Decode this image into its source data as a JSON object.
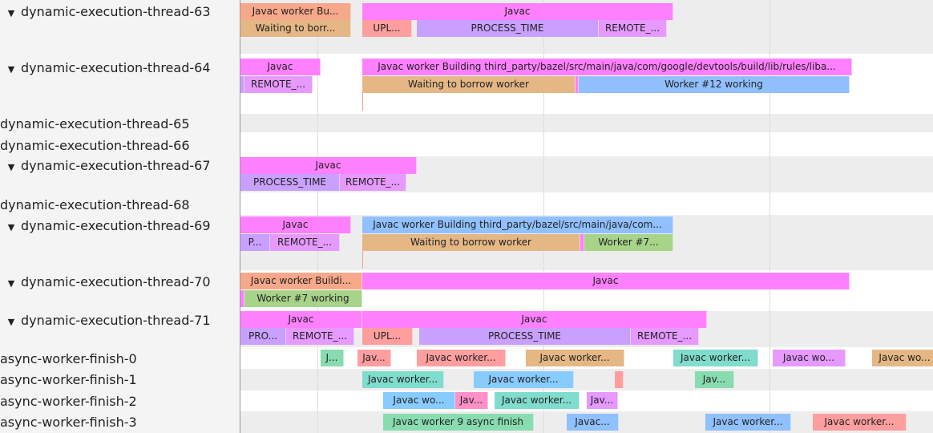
{
  "colors": {
    "javac": "#ff80ff",
    "salmon": "#f8a88a",
    "tan": "#e4b785",
    "red": "#ff9e9e",
    "lavender": "#c9a0ff",
    "violet": "#e699ff",
    "blue": "#90c0ff",
    "sky": "#88ccff",
    "lime": "#a8d48a",
    "green": "#88dcb0",
    "teal": "#80dccc",
    "pink": "#ff90c8"
  },
  "tracks": [
    {
      "name": "dynamic-execution-thread-63",
      "expanded": true,
      "slices": [
        {
          "text": "Javac worker Bu...",
          "color": "#f8a88a"
        },
        {
          "text": "Javac",
          "color": "#ff80ff"
        },
        {
          "text": "Waiting to borr...",
          "color": "#e4b785"
        },
        {
          "text": "UPL...",
          "color": "#ff9e9e"
        },
        {
          "text": "PROCESS_TIME",
          "color": "#c9a0ff"
        },
        {
          "text": "REMOTE_...",
          "color": "#e699ff"
        }
      ]
    },
    {
      "name": "dynamic-execution-thread-64",
      "expanded": true,
      "slices": [
        {
          "text": "Javac",
          "color": "#ff80ff"
        },
        {
          "text": "Javac worker Building third_party/bazel/src/main/java/com/google/devtools/build/lib/rules/liba...",
          "color": "#ff80ff"
        },
        {
          "text": "",
          "color": "#c9a0ff"
        },
        {
          "text": "REMOTE_...",
          "color": "#e699ff"
        },
        {
          "text": "Waiting to borrow worker",
          "color": "#e4b785"
        },
        {
          "text": "",
          "color": "#ff80ff"
        },
        {
          "text": "Worker #12 working",
          "color": "#90c0ff"
        }
      ]
    },
    {
      "name": "dynamic-execution-thread-65",
      "expanded": false,
      "slices": []
    },
    {
      "name": "dynamic-execution-thread-66",
      "expanded": false,
      "slices": []
    },
    {
      "name": "dynamic-execution-thread-67",
      "expanded": true,
      "slices": [
        {
          "text": "Javac",
          "color": "#ff80ff"
        },
        {
          "text": "PROCESS_TIME",
          "color": "#c9a0ff"
        },
        {
          "text": "REMOTE_...",
          "color": "#e699ff"
        }
      ]
    },
    {
      "name": "dynamic-execution-thread-68",
      "expanded": false,
      "slices": []
    },
    {
      "name": "dynamic-execution-thread-69",
      "expanded": true,
      "slices": [
        {
          "text": "Javac",
          "color": "#ff80ff"
        },
        {
          "text": "Javac worker Building third_party/bazel/src/main/java/com...",
          "color": "#90c0ff"
        },
        {
          "text": "P...",
          "color": "#c9a0ff"
        },
        {
          "text": "REMOTE_...",
          "color": "#e699ff"
        },
        {
          "text": "Waiting to borrow worker",
          "color": "#e4b785"
        },
        {
          "text": "",
          "color": "#ff80ff"
        },
        {
          "text": "Worker #7...",
          "color": "#a8d48a"
        }
      ]
    },
    {
      "name": "dynamic-execution-thread-70",
      "expanded": true,
      "slices": [
        {
          "text": "Javac worker Buildi...",
          "color": "#f8a88a"
        },
        {
          "text": "Javac",
          "color": "#ff80ff"
        },
        {
          "text": "",
          "color": "#ff80ff"
        },
        {
          "text": "Worker #7 working",
          "color": "#a8d48a"
        }
      ]
    },
    {
      "name": "dynamic-execution-thread-71",
      "expanded": true,
      "slices": [
        {
          "text": "Javac",
          "color": "#ff80ff"
        },
        {
          "text": "Javac",
          "color": "#ff80ff"
        },
        {
          "text": "PRO...",
          "color": "#c9a0ff"
        },
        {
          "text": "REMOTE_...",
          "color": "#e699ff"
        },
        {
          "text": "UPL...",
          "color": "#ff9e9e"
        },
        {
          "text": "PROCESS_TIME",
          "color": "#c9a0ff"
        },
        {
          "text": "REMOTE_...",
          "color": "#e699ff"
        }
      ]
    },
    {
      "name": "async-worker-finish-0",
      "expanded": false,
      "slices": [
        {
          "text": "J...",
          "color": "#88dcb0"
        },
        {
          "text": "Jav...",
          "color": "#ff9e9e"
        },
        {
          "text": "Javac worker...",
          "color": "#ff9e9e"
        },
        {
          "text": "Javac worker...",
          "color": "#e4b785"
        },
        {
          "text": "Javac worker...",
          "color": "#80dccc"
        },
        {
          "text": "Javac wo...",
          "color": "#e699ff"
        },
        {
          "text": "Javac wo...",
          "color": "#e4b785"
        }
      ]
    },
    {
      "name": "async-worker-finish-1",
      "expanded": false,
      "slices": [
        {
          "text": "Javac worker...",
          "color": "#80dccc"
        },
        {
          "text": "Javac worker...",
          "color": "#88ccff"
        },
        {
          "text": "",
          "color": "#ff9e9e"
        },
        {
          "text": "Jav...",
          "color": "#88dcb0"
        }
      ]
    },
    {
      "name": "async-worker-finish-2",
      "expanded": false,
      "slices": [
        {
          "text": "Javac wo...",
          "color": "#88ccff"
        },
        {
          "text": "Jav...",
          "color": "#ff90c8"
        },
        {
          "text": "Javac worker...",
          "color": "#80dccc"
        },
        {
          "text": "Jav...",
          "color": "#e699ff"
        }
      ]
    },
    {
      "name": "async-worker-finish-3",
      "expanded": false,
      "slices": [
        {
          "text": "Javac worker 9 async finish",
          "color": "#88dcb0"
        },
        {
          "text": "Javac...",
          "color": "#90c0ff"
        },
        {
          "text": "Javac worker...",
          "color": "#90c0ff"
        },
        {
          "text": "Javac worker...",
          "color": "#ff9e9e"
        }
      ]
    }
  ]
}
